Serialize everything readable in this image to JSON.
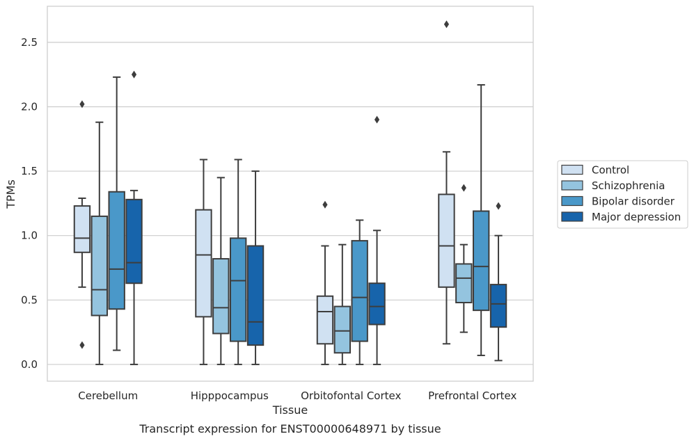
{
  "chart_data": {
    "type": "boxplot",
    "xlabel": "Tissue",
    "ylabel": "TPMs",
    "caption": "Transcript expression for ENST00000648971 by tissue",
    "ylim": [
      -0.13,
      2.78
    ],
    "yticks": [
      "0.0",
      "0.5",
      "1.0",
      "1.5",
      "2.0",
      "2.5"
    ],
    "grid": true,
    "legend_position": "right",
    "categories": [
      "Cerebellum",
      "Hipppocampus",
      "Orbitofontal Cortex",
      "Prefrontal Cortex"
    ],
    "series": [
      {
        "name": "Control",
        "color": "#d0e1f2",
        "boxes": [
          {
            "whislo": 0.6,
            "q1": 0.87,
            "med": 0.98,
            "q3": 1.23,
            "whishi": 1.29,
            "fliers": [
              2.02,
              0.15
            ]
          },
          {
            "whislo": 0.0,
            "q1": 0.37,
            "med": 0.85,
            "q3": 1.2,
            "whishi": 1.59,
            "fliers": []
          },
          {
            "whislo": 0.0,
            "q1": 0.16,
            "med": 0.41,
            "q3": 0.53,
            "whishi": 0.92,
            "fliers": [
              1.24
            ]
          },
          {
            "whislo": 0.16,
            "q1": 0.6,
            "med": 0.92,
            "q3": 1.32,
            "whishi": 1.65,
            "fliers": [
              2.64
            ]
          }
        ]
      },
      {
        "name": "Schizophrenia",
        "color": "#94c4df",
        "boxes": [
          {
            "whislo": 0.0,
            "q1": 0.38,
            "med": 0.58,
            "q3": 1.15,
            "whishi": 1.88,
            "fliers": []
          },
          {
            "whislo": 0.0,
            "q1": 0.24,
            "med": 0.44,
            "q3": 0.82,
            "whishi": 1.45,
            "fliers": []
          },
          {
            "whislo": 0.0,
            "q1": 0.09,
            "med": 0.26,
            "q3": 0.45,
            "whishi": 0.93,
            "fliers": []
          },
          {
            "whislo": 0.25,
            "q1": 0.48,
            "med": 0.67,
            "q3": 0.78,
            "whishi": 0.93,
            "fliers": [
              1.37
            ]
          }
        ]
      },
      {
        "name": "Bipolar disorder",
        "color": "#4a98c9",
        "boxes": [
          {
            "whislo": 0.11,
            "q1": 0.43,
            "med": 0.74,
            "q3": 1.34,
            "whishi": 2.23,
            "fliers": []
          },
          {
            "whislo": 0.0,
            "q1": 0.18,
            "med": 0.65,
            "q3": 0.98,
            "whishi": 1.59,
            "fliers": []
          },
          {
            "whislo": 0.0,
            "q1": 0.18,
            "med": 0.52,
            "q3": 0.96,
            "whishi": 1.12,
            "fliers": []
          },
          {
            "whislo": 0.07,
            "q1": 0.42,
            "med": 0.76,
            "q3": 1.19,
            "whishi": 2.17,
            "fliers": []
          }
        ]
      },
      {
        "name": "Major depression",
        "color": "#1764ab",
        "boxes": [
          {
            "whislo": 0.0,
            "q1": 0.63,
            "med": 0.79,
            "q3": 1.28,
            "whishi": 1.35,
            "fliers": [
              2.25
            ]
          },
          {
            "whislo": 0.0,
            "q1": 0.15,
            "med": 0.33,
            "q3": 0.92,
            "whishi": 1.5,
            "fliers": []
          },
          {
            "whislo": 0.0,
            "q1": 0.31,
            "med": 0.45,
            "q3": 0.63,
            "whishi": 1.04,
            "fliers": [
              1.9
            ]
          },
          {
            "whislo": 0.03,
            "q1": 0.29,
            "med": 0.47,
            "q3": 0.62,
            "whishi": 1.0,
            "fliers": [
              1.23
            ]
          }
        ]
      }
    ]
  }
}
